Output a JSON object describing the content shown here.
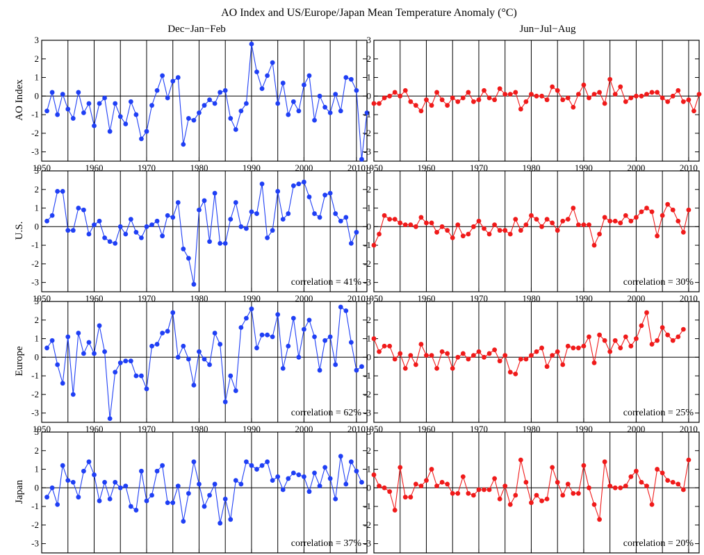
{
  "figure": {
    "title": "AO Index and US/Europe/Japan Mean Temperature Anomaly (°C)",
    "columns": [
      "Dec−Jan−Feb",
      "Jun−Jul−Aug"
    ],
    "rows": [
      "AO Index",
      "U.S.",
      "Europe",
      "Japan"
    ],
    "colors": {
      "winter": "#1f3ff5",
      "summer": "#f01a1a"
    }
  },
  "chart_data": [
    {
      "id": "ao-winter",
      "type": "line",
      "season": "Dec−Jan−Feb",
      "row": "AO Index",
      "xlim": [
        1950,
        2012
      ],
      "ylim": [
        -3.5,
        3
      ],
      "xticks": [
        1950,
        1960,
        1970,
        1980,
        1990,
        2000,
        2010
      ],
      "yticks": [
        -3,
        -2,
        -1,
        0,
        1,
        2,
        3
      ],
      "x_start": 1951,
      "color": "#1f3ff5",
      "correlation": "",
      "values": [
        -0.8,
        0.2,
        -1.0,
        0.1,
        -0.7,
        -1.2,
        0.2,
        -0.9,
        -0.4,
        -1.6,
        -0.4,
        -0.1,
        -1.9,
        -0.4,
        -1.1,
        -1.5,
        -0.3,
        -1.0,
        -2.3,
        -1.9,
        -0.5,
        0.3,
        1.1,
        -0.1,
        0.8,
        1.0,
        -2.6,
        -1.2,
        -1.3,
        -0.9,
        -0.5,
        -0.2,
        -0.4,
        0.2,
        0.3,
        -1.2,
        -1.8,
        -0.8,
        -0.4,
        2.8,
        1.3,
        0.4,
        1.1,
        1.8,
        -0.4,
        0.7,
        -1.0,
        -0.3,
        -0.8,
        0.6,
        1.1,
        -1.3,
        0.0,
        -0.6,
        -0.9,
        0.1,
        -0.8,
        1.0,
        0.9,
        0.3,
        -3.4,
        -0.9
      ]
    },
    {
      "id": "ao-summer",
      "type": "line",
      "season": "Jun−Jul−Aug",
      "row": "AO Index",
      "xlim": [
        1950,
        2012
      ],
      "ylim": [
        -3.5,
        3
      ],
      "xticks": [
        1950,
        1960,
        1970,
        1980,
        1990,
        2000,
        2010
      ],
      "yticks": [
        -3,
        -2,
        -1,
        0,
        1,
        2,
        3
      ],
      "x_start": 1950,
      "color": "#f01a1a",
      "correlation": "",
      "values": [
        -0.4,
        -0.4,
        -0.1,
        0.0,
        0.2,
        0.0,
        0.3,
        -0.3,
        -0.5,
        -0.8,
        -0.2,
        -0.5,
        0.2,
        -0.2,
        -0.5,
        -0.1,
        -0.3,
        -0.1,
        0.2,
        -0.3,
        -0.2,
        0.3,
        -0.1,
        -0.2,
        0.4,
        0.1,
        0.1,
        0.2,
        -0.7,
        -0.3,
        0.1,
        0.0,
        0.0,
        -0.2,
        0.5,
        0.3,
        -0.2,
        -0.1,
        -0.6,
        0.1,
        0.6,
        -0.1,
        0.1,
        0.2,
        -0.4,
        0.9,
        0.1,
        0.5,
        -0.3,
        -0.1,
        0.0,
        0.0,
        0.1,
        0.2,
        0.2,
        -0.1,
        -0.3,
        0.0,
        0.3,
        -0.3,
        -0.2,
        -0.8,
        0.1
      ]
    },
    {
      "id": "us-winter",
      "type": "line",
      "season": "Dec−Jan−Feb",
      "row": "U.S.",
      "xlim": [
        1950,
        2012
      ],
      "ylim": [
        -3.5,
        3
      ],
      "xticks": [
        1950,
        1960,
        1970,
        1980,
        1990,
        2000,
        2010
      ],
      "yticks": [
        -3,
        -2,
        -1,
        0,
        1,
        2,
        3
      ],
      "x_start": 1951,
      "color": "#1f3ff5",
      "correlation": "correlation = 41%",
      "values": [
        0.3,
        0.6,
        1.9,
        1.9,
        -0.2,
        -0.2,
        1.0,
        0.9,
        -0.4,
        0.1,
        0.3,
        -0.6,
        -0.8,
        -0.9,
        0.0,
        -0.4,
        0.4,
        -0.3,
        -0.6,
        0.0,
        0.1,
        0.3,
        -0.5,
        0.6,
        0.5,
        1.3,
        -1.2,
        -1.7,
        -3.1,
        0.9,
        1.4,
        -0.8,
        1.8,
        -0.9,
        -0.9,
        0.4,
        1.3,
        0.0,
        -0.1,
        0.8,
        0.7,
        2.3,
        -0.6,
        -0.2,
        1.9,
        0.4,
        0.7,
        2.2,
        2.3,
        2.4,
        1.6,
        0.7,
        0.5,
        1.7,
        1.8,
        0.7,
        0.3,
        0.5,
        -0.9,
        -0.3
      ]
    },
    {
      "id": "us-summer",
      "type": "line",
      "season": "Jun−Jul−Aug",
      "row": "U.S.",
      "xlim": [
        1950,
        2012
      ],
      "ylim": [
        -3.5,
        3
      ],
      "xticks": [
        1950,
        1960,
        1970,
        1980,
        1990,
        2000,
        2010
      ],
      "yticks": [
        -3,
        -2,
        -1,
        0,
        1,
        2,
        3
      ],
      "x_start": 1950,
      "color": "#f01a1a",
      "correlation": "correlation = 30%",
      "values": [
        -1.0,
        -0.4,
        0.6,
        0.4,
        0.4,
        0.2,
        0.1,
        0.1,
        0.0,
        0.5,
        0.2,
        0.2,
        -0.3,
        0.0,
        -0.2,
        -0.6,
        0.1,
        -0.5,
        -0.4,
        0.0,
        0.3,
        -0.1,
        -0.4,
        0.1,
        -0.2,
        -0.2,
        -0.4,
        0.4,
        -0.2,
        0.1,
        0.6,
        0.4,
        0.0,
        0.4,
        0.2,
        -0.2,
        0.3,
        0.4,
        1.0,
        0.1,
        0.1,
        0.1,
        -1.0,
        -0.4,
        0.5,
        0.3,
        0.3,
        0.2,
        0.6,
        0.3,
        0.5,
        0.8,
        1.0,
        0.8,
        -0.5,
        0.6,
        1.2,
        0.9,
        0.3,
        -0.3,
        0.9
      ]
    },
    {
      "id": "europe-winter",
      "type": "line",
      "season": "Dec−Jan−Feb",
      "row": "Europe",
      "xlim": [
        1950,
        2012
      ],
      "ylim": [
        -3.5,
        3
      ],
      "xticks": [
        1950,
        1960,
        1970,
        1980,
        1990,
        2000,
        2010
      ],
      "yticks": [
        -3,
        -2,
        -1,
        0,
        1,
        2,
        3
      ],
      "x_start": 1951,
      "color": "#1f3ff5",
      "correlation": "correlation = 62%",
      "values": [
        0.5,
        0.9,
        -0.4,
        -1.4,
        1.1,
        -2.0,
        1.3,
        0.2,
        0.8,
        0.2,
        1.7,
        0.3,
        -3.3,
        -0.8,
        -0.3,
        -0.2,
        -0.2,
        -1.0,
        -1.0,
        -1.7,
        0.6,
        0.7,
        1.3,
        1.4,
        2.4,
        0.0,
        0.6,
        -0.1,
        -1.5,
        0.3,
        -0.1,
        -0.4,
        1.3,
        0.7,
        -2.4,
        -1.0,
        -1.8,
        1.6,
        2.1,
        2.6,
        0.5,
        1.2,
        1.2,
        1.1,
        2.3,
        -0.6,
        0.6,
        2.1,
        0.0,
        1.5,
        2.0,
        1.1,
        -0.7,
        0.9,
        1.1,
        -0.4,
        2.7,
        2.5,
        0.8,
        -0.7,
        -0.5
      ]
    },
    {
      "id": "europe-summer",
      "type": "line",
      "season": "Jun−Jul−Aug",
      "row": "Europe",
      "xlim": [
        1950,
        2012
      ],
      "ylim": [
        -3.5,
        3
      ],
      "xticks": [
        1950,
        1960,
        1970,
        1980,
        1990,
        2000,
        2010
      ],
      "yticks": [
        -3,
        -2,
        -1,
        0,
        1,
        2,
        3
      ],
      "x_start": 1950,
      "color": "#f01a1a",
      "correlation": "correlation = 25%",
      "values": [
        1.0,
        0.3,
        0.6,
        0.6,
        -0.1,
        0.2,
        -0.6,
        0.1,
        -0.4,
        0.7,
        0.1,
        0.1,
        -0.6,
        0.3,
        0.2,
        -0.6,
        0.0,
        0.2,
        -0.1,
        0.1,
        0.3,
        0.0,
        0.2,
        0.4,
        -0.2,
        0.1,
        -0.8,
        -0.9,
        -0.1,
        -0.1,
        0.1,
        0.3,
        0.5,
        -0.5,
        0.1,
        0.3,
        -0.4,
        0.6,
        0.5,
        0.5,
        0.6,
        1.1,
        -0.3,
        1.2,
        0.9,
        0.3,
        0.9,
        0.5,
        1.1,
        0.6,
        1.0,
        1.7,
        2.4,
        0.7,
        0.9,
        1.6,
        1.2,
        0.9,
        1.1,
        1.5
      ]
    },
    {
      "id": "japan-winter",
      "type": "line",
      "season": "Dec−Jan−Feb",
      "row": "Japan",
      "xlim": [
        1950,
        2012
      ],
      "ylim": [
        -3.5,
        3
      ],
      "xticks": [
        1950,
        1960,
        1970,
        1980,
        1990,
        2000,
        2010
      ],
      "yticks": [
        -3,
        -2,
        -1,
        0,
        1,
        2,
        3
      ],
      "x_start": 1951,
      "color": "#1f3ff5",
      "correlation": "correlation = 37%",
      "values": [
        -0.5,
        0.0,
        -0.9,
        1.2,
        0.4,
        0.3,
        -0.5,
        0.9,
        1.4,
        0.7,
        -0.7,
        0.3,
        -0.6,
        0.3,
        0.0,
        0.1,
        -1.0,
        -1.2,
        0.9,
        -0.7,
        -0.4,
        0.9,
        1.2,
        -0.8,
        -0.8,
        0.1,
        -1.8,
        -0.3,
        1.4,
        0.2,
        -1.0,
        -0.4,
        0.2,
        -1.9,
        -0.6,
        -1.7,
        0.4,
        0.2,
        1.4,
        1.2,
        1.0,
        1.2,
        1.4,
        0.4,
        0.6,
        -0.1,
        0.5,
        0.8,
        0.7,
        0.6,
        -0.2,
        0.8,
        0.1,
        1.1,
        0.5,
        -0.6,
        1.7,
        0.2,
        1.4,
        0.9,
        0.3
      ]
    },
    {
      "id": "japan-summer",
      "type": "line",
      "season": "Jun−Jul−Aug",
      "row": "Japan",
      "xlim": [
        1950,
        2012
      ],
      "ylim": [
        -3.5,
        3
      ],
      "xticks": [
        1950,
        1960,
        1970,
        1980,
        1990,
        2000,
        2010
      ],
      "yticks": [
        -3,
        -2,
        -1,
        0,
        1,
        2,
        3
      ],
      "x_start": 1950,
      "color": "#f01a1a",
      "correlation": "correlation = 20%",
      "values": [
        0.7,
        0.1,
        0.0,
        -0.2,
        -1.2,
        1.1,
        -0.5,
        -0.5,
        0.2,
        0.1,
        0.4,
        1.0,
        0.1,
        0.3,
        0.2,
        -0.3,
        -0.3,
        0.6,
        -0.3,
        -0.4,
        -0.1,
        -0.1,
        -0.1,
        0.5,
        -0.6,
        0.1,
        -0.9,
        -0.4,
        1.5,
        0.3,
        -0.8,
        -0.4,
        -0.7,
        -0.6,
        1.1,
        0.3,
        -0.4,
        0.2,
        -0.3,
        -0.3,
        1.2,
        0.0,
        -0.9,
        -1.7,
        1.4,
        0.1,
        0.0,
        0.0,
        0.1,
        0.6,
        0.9,
        0.3,
        0.1,
        -0.9,
        1.0,
        0.8,
        0.4,
        0.3,
        0.2,
        -0.1,
        1.5
      ]
    }
  ]
}
